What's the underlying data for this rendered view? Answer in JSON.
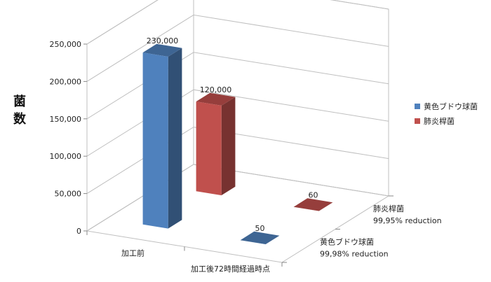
{
  "chart_data": {
    "type": "bar",
    "subtype": "3d-column",
    "title": "",
    "ylabel": "菌数",
    "xlabel": "",
    "ylim": [
      0,
      250000
    ],
    "yticks": [
      "0",
      "50,000",
      "100,000",
      "150,000",
      "200,000",
      "250,000"
    ],
    "categories": [
      "加工前",
      "加工後72時間経過時点"
    ],
    "series": [
      {
        "name": "黄色ブドウ球菌",
        "color": "#4f81bd",
        "values": [
          230000,
          50
        ],
        "labels": [
          "230,000",
          "50"
        ],
        "depth_label": [
          "黄色ブドウ球菌",
          "99,98% reduction"
        ]
      },
      {
        "name": "肺炎桿菌",
        "color": "#c0504d",
        "values": [
          120000,
          60
        ],
        "labels": [
          "120,000",
          "60"
        ],
        "depth_label": [
          "肺炎桿菌",
          "99,95% reduction"
        ]
      }
    ],
    "legend_position": "right",
    "grid": true
  }
}
